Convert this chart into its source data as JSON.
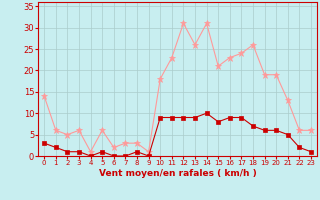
{
  "x": [
    0,
    1,
    2,
    3,
    4,
    5,
    6,
    7,
    8,
    9,
    10,
    11,
    12,
    13,
    14,
    15,
    16,
    17,
    18,
    19,
    20,
    21,
    22,
    23
  ],
  "vent_moyen": [
    3,
    2,
    1,
    1,
    0,
    1,
    0,
    0,
    1,
    0,
    9,
    9,
    9,
    9,
    10,
    8,
    9,
    9,
    7,
    6,
    6,
    5,
    2,
    1
  ],
  "rafales": [
    14,
    6,
    5,
    6,
    1,
    6,
    2,
    3,
    3,
    1,
    18,
    23,
    31,
    26,
    31,
    21,
    23,
    24,
    26,
    19,
    19,
    13,
    6,
    6
  ],
  "color_moyen": "#cc0000",
  "color_rafales": "#ff9999",
  "bg_color": "#c8eef0",
  "grid_color": "#aacccc",
  "xlabel": "Vent moyen/en rafales ( km/h )",
  "ylabel_ticks": [
    0,
    5,
    10,
    15,
    20,
    25,
    30,
    35
  ],
  "ylim": [
    0,
    36
  ],
  "xlim": [
    -0.5,
    23.5
  ],
  "xlabel_color": "#cc0000",
  "tick_color": "#cc0000",
  "marker_moyen": "s",
  "marker_rafales": "*",
  "linewidth": 0.8,
  "markersize_moyen": 2.5,
  "markersize_rafales": 4.5
}
